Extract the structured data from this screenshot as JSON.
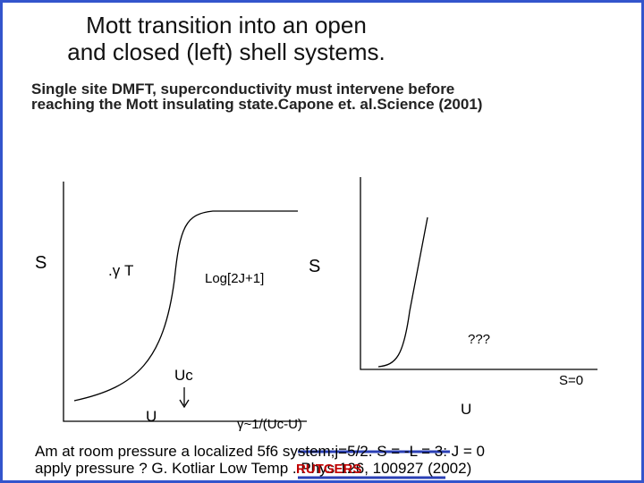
{
  "title": [
    "Mott transition into an open",
    "and closed (left) shell systems."
  ],
  "body": "Single site DMFT, superconductivity must intervene before reaching the Mott insulating state.Capone et. al.Science (2001)",
  "left_diagram": {
    "y_label": "S",
    "slope_label": ".γ T",
    "plateau_label": "Log[2J+1]",
    "uc_label": "Uc",
    "x_label": "U"
  },
  "right_diagram": {
    "y_label": "S",
    "question_label": "???",
    "s0_label": "S=0",
    "x_label": "U"
  },
  "gamma_label": "γ~1/(Uc-U)",
  "footer": "Am at room pressure a localized 5f6 system;j=5/2. S = -L = 3: J = 0 apply pressure ? G. Kotliar Low Temp . Phys 126, 100927 (2002)",
  "logo": "RUTGERS"
}
